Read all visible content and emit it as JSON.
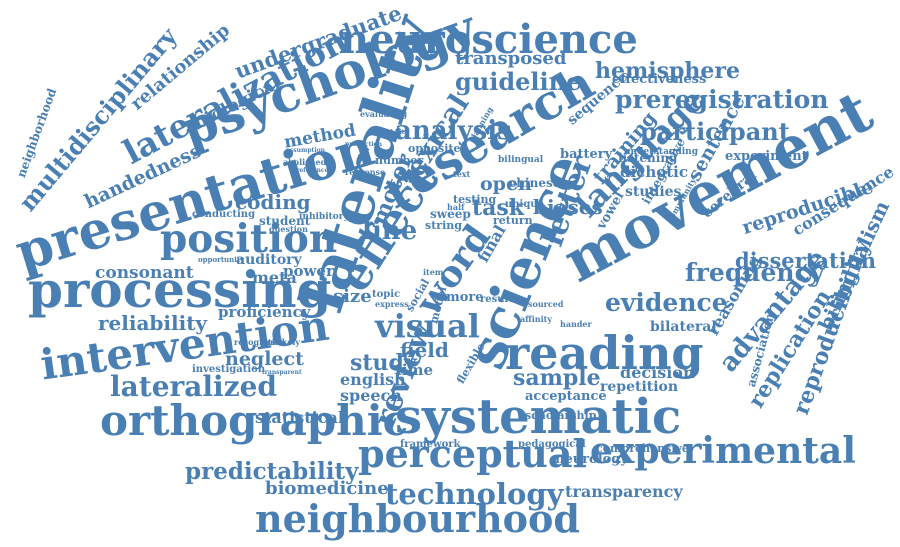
{
  "style": {
    "text_color": "#4a7fb4",
    "background": "#ffffff"
  },
  "words": [
    "neuroscience",
    "psychology",
    "laterality",
    "research",
    "science",
    "presentation",
    "lateralization",
    "movement",
    "processing",
    "position",
    "systematic",
    "orthographic",
    "reading",
    "neighbourhood",
    "intervention",
    "perceptual",
    "experimental",
    "technology",
    "language",
    "participant",
    "preregistration",
    "hemisphere",
    "undergraduate",
    "multidisciplinary",
    "relationship",
    "handedness",
    "lateralized",
    "predictability",
    "biomedicine",
    "transparency",
    "reproducibility",
    "bilingualism",
    "replication",
    "advantage",
    "reproducible",
    "dissertation",
    "frequency",
    "evidence",
    "consequence",
    "reliability",
    "consonant",
    "effect",
    "word",
    "visual",
    "letter",
    "review",
    "analysis",
    "guideline",
    "transposed",
    "biological",
    "neighborhood",
    "line",
    "task",
    "biases",
    "open",
    "coding",
    "sample",
    "study",
    "field",
    "english",
    "speech",
    "statistical",
    "neglect",
    "proficiency",
    "auditory",
    "meta",
    "power",
    "size",
    "motor",
    "lexical",
    "method",
    "time",
    "training",
    "sentence",
    "dichotic",
    "listening",
    "studies",
    "cerebral",
    "integrative",
    "vowel",
    "decision",
    "repetition",
    "reasoning",
    "association",
    "bilateral",
    "experiment",
    "effectiveness",
    "sequence",
    "battery",
    "understanding",
    "number",
    "opposite",
    "chinese",
    "bilingual",
    "testing",
    "sweep",
    "string",
    "return",
    "unique",
    "final",
    "more",
    "result",
    "acceptance",
    "scholarship",
    "flexible",
    "neurology",
    "comprehensive",
    "pedagogical",
    "framework",
    "investigation",
    "recognition",
    "unlikely",
    "opportunity",
    "conducting",
    "student",
    "inhibitory",
    "abolished",
    "question",
    "evaluating",
    "item",
    "model",
    "social",
    "topic",
    "express",
    "half",
    "text",
    "planning",
    "response",
    "community",
    "hander",
    "affinity",
    "assumption",
    "production",
    "preference",
    "capability",
    "sourced",
    "transparent"
  ]
}
